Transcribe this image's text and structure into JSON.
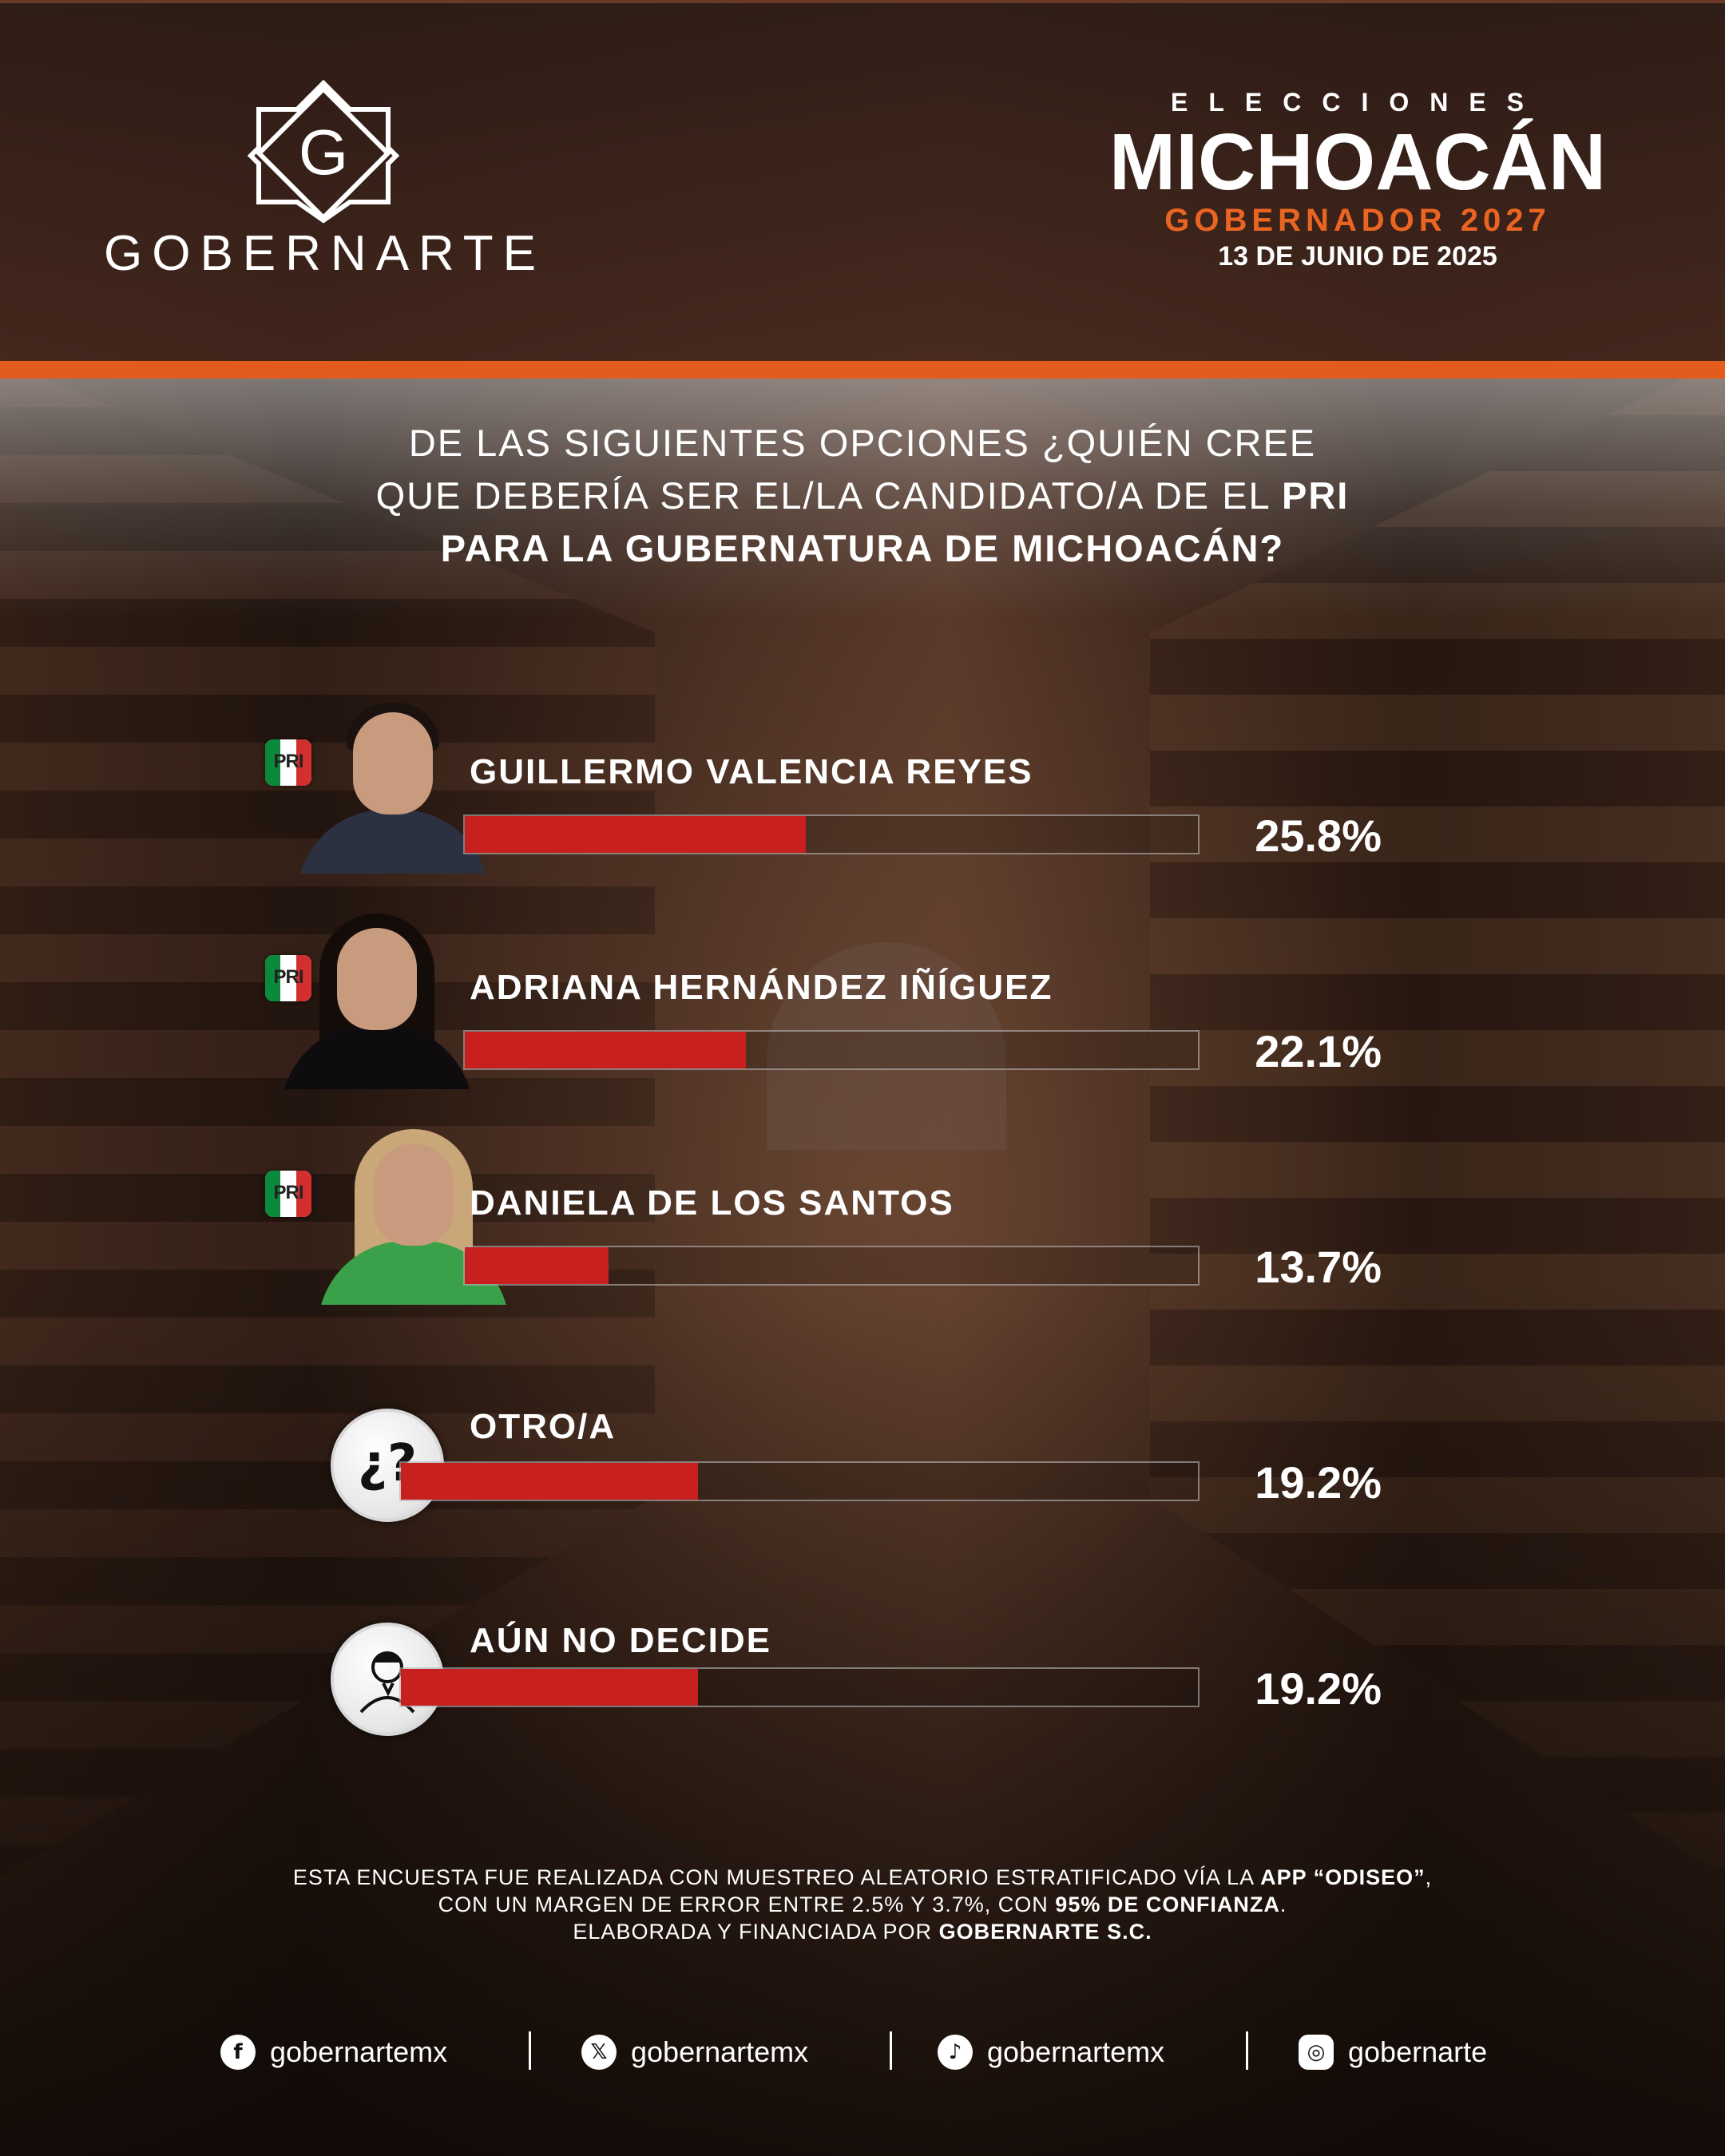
{
  "brand": {
    "name": "GOBERNARTE",
    "logo_letter": "G"
  },
  "election": {
    "label": "ELECCIONES",
    "state": "MICHOACÁN",
    "office": "GOBERNADOR 2027",
    "date": "13 DE JUNIO DE 2025"
  },
  "question": {
    "line1": "DE LAS SIGUIENTES OPCIONES ¿QUIÉN CREE",
    "line2_pre": "QUE DEBERÍA SER EL/LA CANDIDATO/A DE EL ",
    "line2_party": "PRI",
    "line3": "PARA LA GUBERNATURA DE MICHOACÁN?"
  },
  "party_badge": "PRI",
  "icons": {
    "other": "question-marks-icon",
    "undecided": "thinking-person-icon"
  },
  "colors": {
    "accent": "#e35c1d",
    "bar": "#c81f1f",
    "office_text": "#ea6522"
  },
  "chart_data": {
    "type": "bar",
    "orientation": "horizontal",
    "categories": [
      "GUILLERMO VALENCIA REYES",
      "ADRIANA HERNÁNDEZ IÑÍGUEZ",
      "DANIELA DE LOS SANTOS",
      "OTRO/A",
      "AÚN NO DECIDE"
    ],
    "values": [
      25.8,
      22.1,
      13.7,
      19.2,
      19.2
    ],
    "labels": [
      "25.8%",
      "22.1%",
      "13.7%",
      "19.2%",
      "19.2%"
    ],
    "unit": "%",
    "xlim": [
      0,
      50
    ],
    "grid": false,
    "legend": "none"
  },
  "methodology": {
    "line1_pre": "ESTA ENCUESTA FUE REALIZADA CON MUESTREO ALEATORIO ESTRATIFICADO VÍA LA ",
    "line1_bold": "APP “ODISEO”",
    "line1_post": ",",
    "line2_pre": "CON UN MARGEN DE ERROR ENTRE 2.5% Y 3.7%, CON ",
    "line2_bold": "95% DE CONFIANZA",
    "line2_post": ".",
    "line3_pre": "ELABORADA Y FINANCIADA POR ",
    "line3_bold": "GOBERNARTE S.C."
  },
  "socials": [
    {
      "network": "facebook",
      "icon": "facebook-icon",
      "handle": "gobernartemx"
    },
    {
      "network": "x",
      "icon": "x-icon",
      "handle": "gobernartemx"
    },
    {
      "network": "tiktok",
      "icon": "tiktok-icon",
      "handle": "gobernartemx"
    },
    {
      "network": "instagram",
      "icon": "instagram-icon",
      "handle": "gobernarte"
    }
  ]
}
